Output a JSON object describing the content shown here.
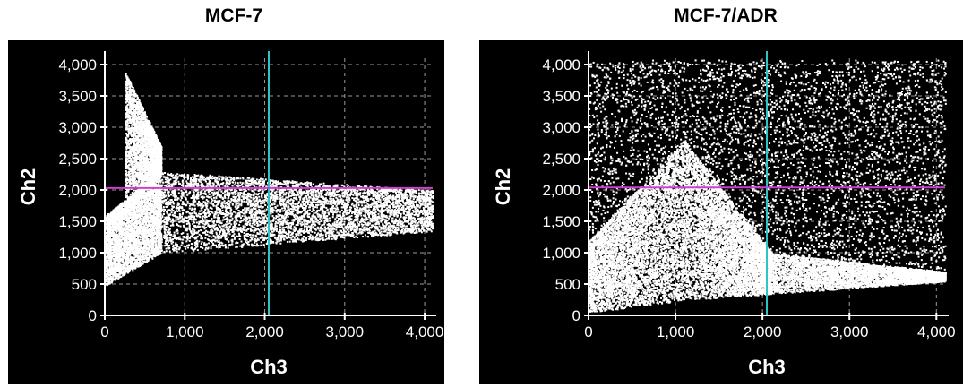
{
  "figure": {
    "panels": [
      {
        "title": "MCF-7"
      },
      {
        "title": "MCF-7/ADR"
      }
    ]
  },
  "chart_data": [
    {
      "type": "scatter",
      "title": "MCF-7",
      "xlabel": "Ch3",
      "ylabel": "Ch2",
      "xlim": [
        0,
        4100
      ],
      "ylim": [
        0,
        4100
      ],
      "xticks": [
        "0",
        "1,000",
        "2,000",
        "3,000",
        "4,000"
      ],
      "yticks": [
        "0",
        "500",
        "1,000",
        "1,500",
        "2,000",
        "2,500",
        "3,000",
        "3,500",
        "4,000"
      ],
      "grid": true,
      "gates": {
        "vertical_x": 2050,
        "horizontal_y": 2030
      },
      "density_regions": [
        {
          "x": [
            0,
            700
          ],
          "y_low": [
            480,
            1000
          ],
          "y_high": [
            1600,
            2300
          ]
        },
        {
          "x": [
            250,
            700
          ],
          "y_low": [
            1600,
            2300
          ],
          "y_high": [
            3900,
            2700
          ]
        },
        {
          "x": [
            700,
            4100
          ],
          "y_low": [
            1000,
            1350
          ],
          "y_high": [
            2300,
            2000
          ]
        }
      ]
    },
    {
      "type": "scatter",
      "title": "MCF-7/ADR",
      "xlabel": "Ch3",
      "ylabel": "Ch2",
      "xlim": [
        0,
        4100
      ],
      "ylim": [
        0,
        4100
      ],
      "xticks": [
        "0",
        "1,000",
        "2,000",
        "3,000",
        "4,000"
      ],
      "yticks": [
        "0",
        "500",
        "1,000",
        "1,500",
        "2,000",
        "2,500",
        "3,000",
        "3,500",
        "4,000"
      ],
      "grid": true,
      "gates": {
        "vertical_x": 2050,
        "horizontal_y": 2040
      },
      "density_regions": [
        {
          "x": [
            0,
            1100
          ],
          "y_low": [
            50,
            250
          ],
          "y_high": [
            1200,
            2800
          ]
        },
        {
          "x": [
            1100,
            2100
          ],
          "y_low": [
            250,
            350
          ],
          "y_high": [
            2800,
            1000
          ]
        },
        {
          "x": [
            2100,
            4100
          ],
          "y_low": [
            350,
            550
          ],
          "y_high": [
            1000,
            700
          ]
        },
        {
          "x": [
            0,
            4100
          ],
          "y_low": [
            300,
            550
          ],
          "y_high": [
            4080,
            4080
          ]
        }
      ]
    }
  ],
  "colors": {
    "background": "#000000",
    "points": "#ffffff",
    "axis": "#ffffff",
    "gate_vertical": "#2ec4c4",
    "gate_horizontal": "#d23cd2",
    "grid": "#9a9a9a"
  }
}
